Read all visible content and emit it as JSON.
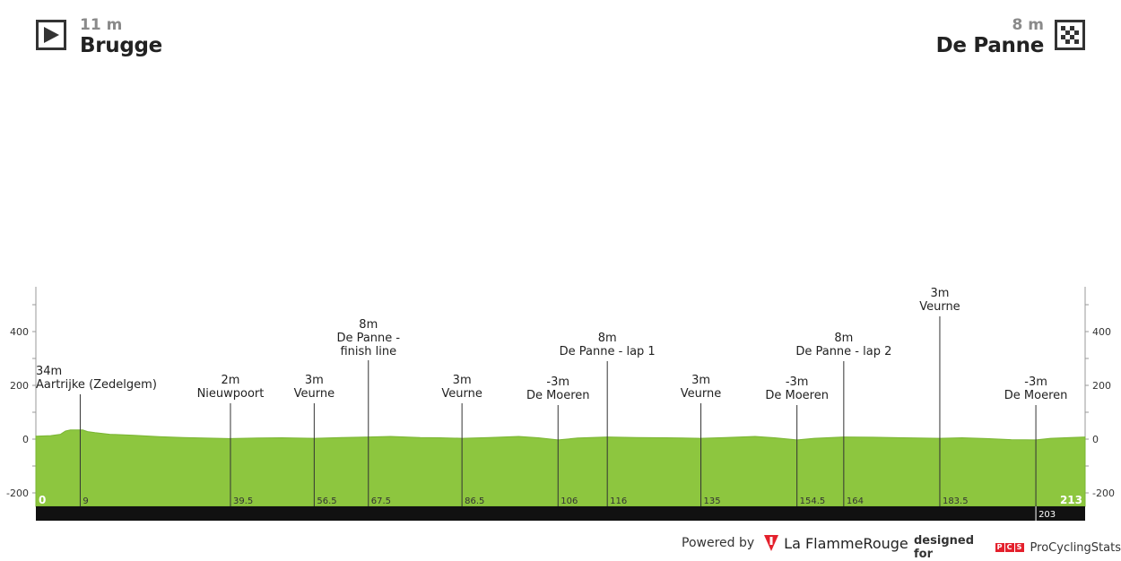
{
  "start": {
    "altitude": "11 m",
    "name": "Brugge",
    "icon": "play-flag-icon"
  },
  "finish": {
    "altitude": "8 m",
    "name": "De Panne",
    "icon": "checkered-flag-icon"
  },
  "chart_data": {
    "type": "area",
    "x_range": [
      0,
      213
    ],
    "ylim": [
      -300,
      600
    ],
    "yticks": [
      -200,
      0,
      200,
      400
    ],
    "xlabel": "",
    "ylabel": "",
    "start_km_label": "0",
    "end_km_label": "213",
    "colors": {
      "fill": "#8dc63f",
      "band": "#111111",
      "marker": "#333333"
    },
    "profile": [
      [
        0,
        11
      ],
      [
        3,
        13
      ],
      [
        5,
        18
      ],
      [
        6,
        30
      ],
      [
        7,
        34
      ],
      [
        9.5,
        34
      ],
      [
        10.5,
        28
      ],
      [
        12,
        24
      ],
      [
        15,
        18
      ],
      [
        20,
        14
      ],
      [
        25,
        9
      ],
      [
        30,
        6
      ],
      [
        39.5,
        2
      ],
      [
        45,
        4
      ],
      [
        50,
        5
      ],
      [
        56.5,
        3
      ],
      [
        62,
        6
      ],
      [
        67.5,
        8
      ],
      [
        72,
        10
      ],
      [
        78,
        6
      ],
      [
        82,
        5
      ],
      [
        86.5,
        3
      ],
      [
        92,
        6
      ],
      [
        98,
        10
      ],
      [
        102,
        5
      ],
      [
        106,
        -3
      ],
      [
        110,
        4
      ],
      [
        116,
        8
      ],
      [
        122,
        6
      ],
      [
        128,
        5
      ],
      [
        135,
        3
      ],
      [
        140,
        6
      ],
      [
        146,
        10
      ],
      [
        150,
        5
      ],
      [
        154.5,
        -3
      ],
      [
        158,
        3
      ],
      [
        164,
        8
      ],
      [
        170,
        7
      ],
      [
        176,
        5
      ],
      [
        183.5,
        3
      ],
      [
        188,
        5
      ],
      [
        193,
        2
      ],
      [
        198,
        -2
      ],
      [
        203,
        -3
      ],
      [
        206,
        3
      ],
      [
        210,
        6
      ],
      [
        213,
        8
      ]
    ],
    "markers": [
      {
        "km": 9,
        "km_label": "9",
        "alt": "34m",
        "name": "Aartrijke (Zedelgem)",
        "label_y": 418,
        "label_align": "left"
      },
      {
        "km": 39.5,
        "km_label": "39.5",
        "alt": "2m",
        "name": "Nieuwpoort",
        "label_y": 428
      },
      {
        "km": 56.5,
        "km_label": "56.5",
        "alt": "3m",
        "name": "Veurne",
        "label_y": 428
      },
      {
        "km": 67.5,
        "km_label": "67.5",
        "alt": "8m",
        "name": "De Panne -",
        "name2": "finish line",
        "label_y": 366
      },
      {
        "km": 86.5,
        "km_label": "86.5",
        "alt": "3m",
        "name": "Veurne",
        "label_y": 428
      },
      {
        "km": 106,
        "km_label": "106",
        "alt": "-3m",
        "name": "De Moeren",
        "label_y": 430
      },
      {
        "km": 116,
        "km_label": "116",
        "alt": "8m",
        "name": "De Panne - lap 1",
        "label_y": 381
      },
      {
        "km": 135,
        "km_label": "135",
        "alt": "3m",
        "name": "Veurne",
        "label_y": 428
      },
      {
        "km": 154.5,
        "km_label": "154.5",
        "alt": "-3m",
        "name": "De Moeren",
        "label_y": 430
      },
      {
        "km": 164,
        "km_label": "164",
        "alt": "8m",
        "name": "De Panne - lap 2",
        "label_y": 381
      },
      {
        "km": 183.5,
        "km_label": "183.5",
        "alt": "3m",
        "name": "Veurne",
        "label_y": 331
      },
      {
        "km": 203,
        "km_label": "203",
        "alt": "-3m",
        "name": "De Moeren",
        "label_y": 430,
        "band_label": true
      }
    ]
  },
  "footer": {
    "powered_label": "Powered by",
    "powered_brand": "La FlammeRouge",
    "designed_label": "designed for",
    "pcs_letters": [
      "P",
      "C",
      "S"
    ],
    "designed_brand": "ProCyclingStats"
  }
}
